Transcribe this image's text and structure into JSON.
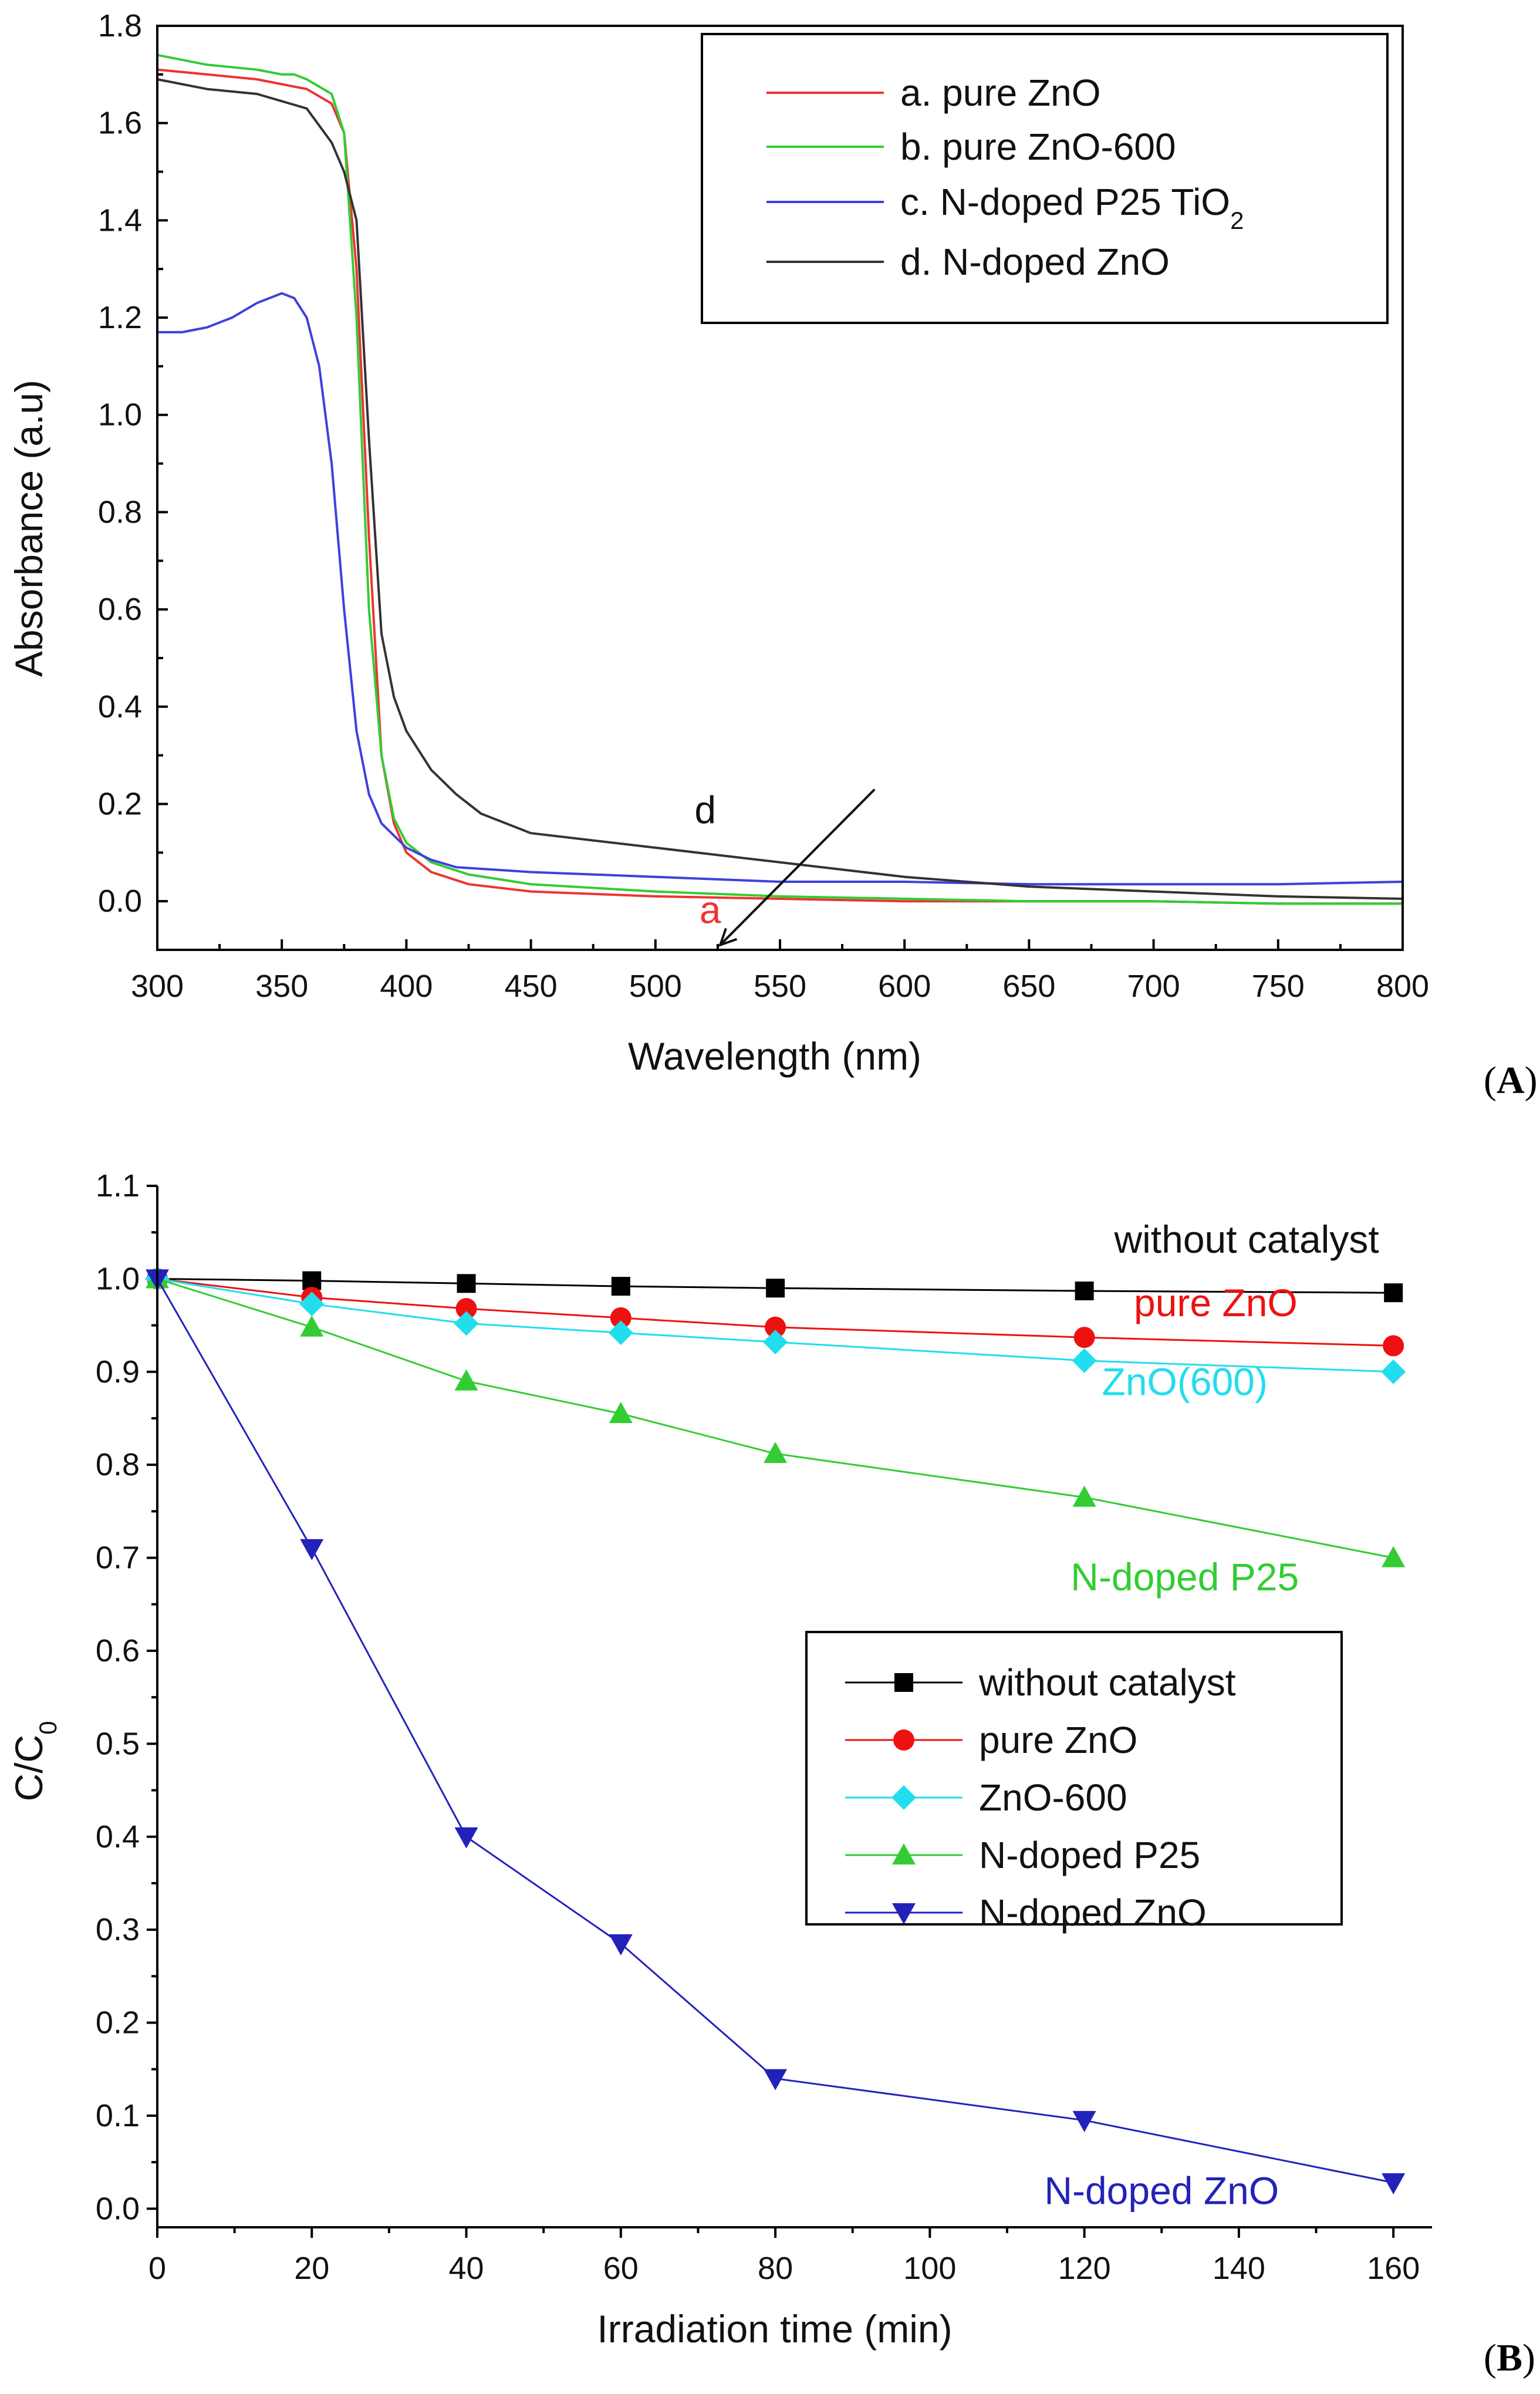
{
  "chart_data": [
    {
      "id": "A",
      "type": "line",
      "panel_label": [
        "(",
        "A",
        ")"
      ],
      "xlabel": "Wavelength (nm)",
      "ylabel": "Absorbance (a.u)",
      "xlim": [
        300,
        800
      ],
      "ylim": [
        -0.1,
        1.8
      ],
      "xticks": [
        300,
        350,
        400,
        450,
        500,
        550,
        600,
        650,
        700,
        750,
        800
      ],
      "yticks": [
        0.0,
        0.2,
        0.4,
        0.6,
        0.8,
        1.0,
        1.2,
        1.4,
        1.6,
        1.8
      ],
      "legend_position": "top-right",
      "series": [
        {
          "name": "a. pure ZnO",
          "color": "#ee3333",
          "x": [
            300,
            320,
            340,
            360,
            370,
            375,
            380,
            385,
            390,
            395,
            400,
            410,
            425,
            450,
            500,
            550,
            600,
            650,
            700,
            750,
            800
          ],
          "y": [
            1.71,
            1.7,
            1.69,
            1.67,
            1.64,
            1.58,
            1.3,
            0.75,
            0.3,
            0.16,
            0.1,
            0.06,
            0.035,
            0.02,
            0.01,
            0.005,
            0.0,
            0.0,
            0.0,
            -0.005,
            -0.005
          ]
        },
        {
          "name": "b. pure ZnO-600",
          "color": "#33cc33",
          "x": [
            300,
            320,
            340,
            350,
            355,
            360,
            370,
            375,
            380,
            385,
            390,
            395,
            400,
            410,
            425,
            450,
            500,
            550,
            600,
            650,
            700,
            750,
            800
          ],
          "y": [
            1.74,
            1.72,
            1.71,
            1.7,
            1.7,
            1.69,
            1.66,
            1.58,
            1.2,
            0.6,
            0.3,
            0.17,
            0.12,
            0.08,
            0.055,
            0.035,
            0.02,
            0.01,
            0.005,
            0.0,
            0.0,
            -0.005,
            -0.005
          ]
        },
        {
          "name": "c. N-doped P25 TiO2",
          "color": "#4040dd",
          "x": [
            300,
            310,
            320,
            330,
            340,
            350,
            355,
            360,
            365,
            370,
            375,
            380,
            385,
            390,
            400,
            410,
            420,
            450,
            500,
            550,
            600,
            650,
            700,
            750,
            800
          ],
          "y": [
            1.17,
            1.17,
            1.18,
            1.2,
            1.23,
            1.25,
            1.24,
            1.2,
            1.1,
            0.9,
            0.6,
            0.35,
            0.22,
            0.16,
            0.11,
            0.085,
            0.07,
            0.06,
            0.05,
            0.04,
            0.04,
            0.035,
            0.035,
            0.035,
            0.04
          ]
        },
        {
          "name": "d. N-doped ZnO",
          "color": "#333333",
          "x": [
            300,
            320,
            340,
            360,
            370,
            375,
            380,
            385,
            390,
            395,
            400,
            410,
            420,
            430,
            450,
            500,
            550,
            600,
            650,
            700,
            750,
            800
          ],
          "y": [
            1.69,
            1.67,
            1.66,
            1.63,
            1.56,
            1.5,
            1.4,
            0.95,
            0.55,
            0.42,
            0.35,
            0.27,
            0.22,
            0.18,
            0.14,
            0.11,
            0.08,
            0.05,
            0.03,
            0.02,
            0.01,
            0.005
          ]
        }
      ],
      "annotations": [
        {
          "text": "d",
          "x": 520,
          "y": 0.16,
          "color": "#111111"
        },
        {
          "text": "a",
          "x": 522,
          "y": -0.045,
          "color": "#ee3333"
        }
      ],
      "arrow": {
        "from": [
          588,
          0.23
        ],
        "to": [
          526,
          -0.09
        ]
      }
    },
    {
      "id": "B",
      "type": "line",
      "panel_label": [
        "(",
        "B",
        ")"
      ],
      "xlabel": "Irradiation time (min)",
      "ylabel": "C/C",
      "ylabel_sub": "0",
      "xlim": [
        0,
        165
      ],
      "ylim": [
        -0.02,
        1.1
      ],
      "xticks": [
        0,
        20,
        40,
        60,
        80,
        100,
        120,
        140,
        160
      ],
      "yticks": [
        0.0,
        0.1,
        0.2,
        0.3,
        0.4,
        0.5,
        0.6,
        0.7,
        0.8,
        0.9,
        1.0,
        1.1
      ],
      "legend_position": "center-right",
      "series": [
        {
          "name": "without catalyst",
          "color": "#000000",
          "marker": "square",
          "x": [
            0,
            20,
            40,
            60,
            80,
            120,
            160
          ],
          "y": [
            1.0,
            0.998,
            0.995,
            0.992,
            0.99,
            0.987,
            0.985
          ]
        },
        {
          "name": "pure ZnO",
          "color": "#ee1111",
          "marker": "circle",
          "x": [
            0,
            20,
            40,
            60,
            80,
            120,
            160
          ],
          "y": [
            1.0,
            0.98,
            0.968,
            0.958,
            0.948,
            0.937,
            0.928
          ]
        },
        {
          "name": "ZnO-600",
          "color": "#22ddee",
          "marker": "diamond",
          "x": [
            0,
            20,
            40,
            60,
            80,
            120,
            160
          ],
          "y": [
            1.0,
            0.973,
            0.952,
            0.942,
            0.932,
            0.912,
            0.9
          ]
        },
        {
          "name": "N-doped P25",
          "color": "#33cc33",
          "marker": "triangle-up",
          "x": [
            0,
            20,
            40,
            60,
            80,
            120,
            160
          ],
          "y": [
            1.0,
            0.948,
            0.89,
            0.855,
            0.812,
            0.765,
            0.7
          ]
        },
        {
          "name": "N-doped ZnO",
          "color": "#2222bb",
          "marker": "triangle-down",
          "x": [
            0,
            20,
            40,
            60,
            80,
            120,
            160
          ],
          "y": [
            1.0,
            0.71,
            0.4,
            0.285,
            0.14,
            0.095,
            0.028
          ]
        }
      ],
      "annotations": [
        {
          "text": "without catalyst",
          "x": 141,
          "y": 1.028,
          "color": "#111111"
        },
        {
          "text": "pure ZnO",
          "x": 137,
          "y": 0.96,
          "color": "#ee1111"
        },
        {
          "text": "ZnO(600)",
          "x": 133,
          "y": 0.875,
          "color": "#22ddee"
        },
        {
          "text": "N-doped P25",
          "x": 133,
          "y": 0.665,
          "color": "#33cc33"
        },
        {
          "text": "N-doped ZnO",
          "x": 130,
          "y": 0.005,
          "color": "#2222bb"
        }
      ]
    }
  ]
}
